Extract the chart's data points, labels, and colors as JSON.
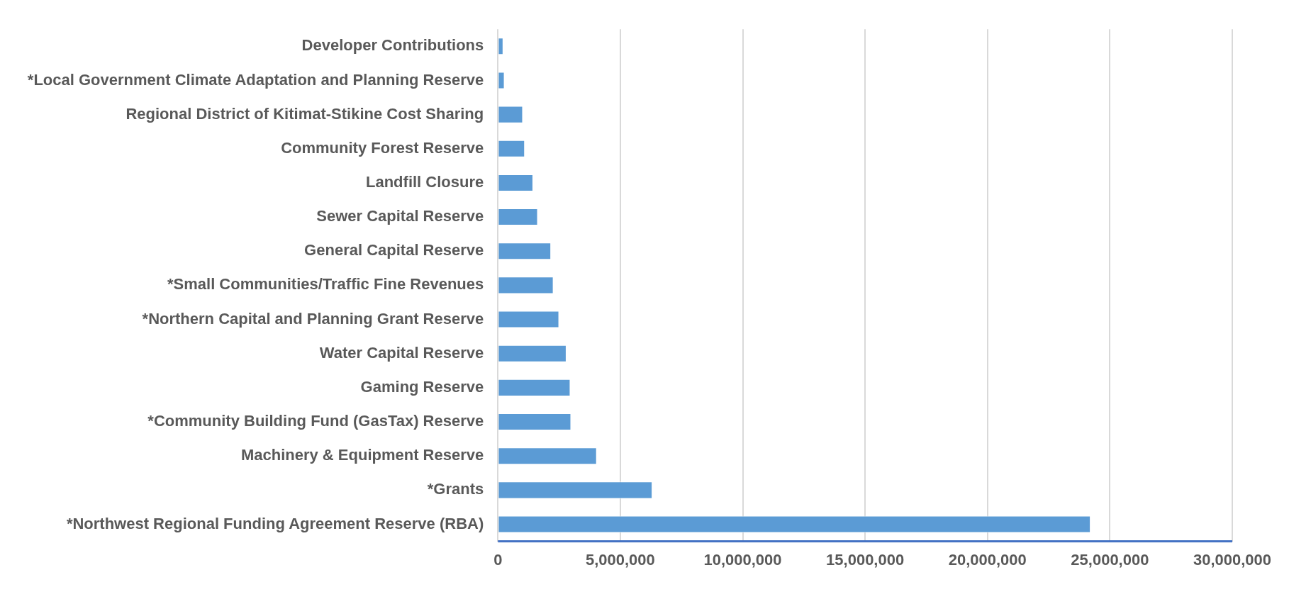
{
  "chart_data": {
    "type": "bar",
    "orientation": "horizontal",
    "categories": [
      "Developer Contributions",
      "*Local Government Climate Adaptation and Planning Reserve",
      "Regional District of Kitimat-Stikine Cost Sharing",
      "Community Forest Reserve",
      "Landfill Closure",
      "Sewer Capital Reserve",
      "General Capital Reserve",
      "*Small Communities/Traffic Fine Revenues",
      "*Northern Capital and Planning Grant Reserve",
      "Water Capital Reserve",
      "Gaming Reserve",
      "*Community Building Fund (GasTax) Reserve",
      "Machinery & Equipment Reserve",
      "*Grants",
      "*Northwest Regional Funding Agreement Reserve (RBA)"
    ],
    "values": [
      220000,
      270000,
      1020000,
      1100000,
      1440000,
      1630000,
      2170000,
      2270000,
      2500000,
      2800000,
      2960000,
      2990000,
      4040000,
      6310000,
      24210000
    ],
    "color": "#5b9bd5",
    "xlim": [
      0,
      30000000
    ],
    "xticks": [
      0,
      {
        "value": 5000000,
        "label": "5,000,000"
      },
      {
        "value": 10000000,
        "label": "10,000,000"
      },
      {
        "value": 15000000,
        "label": "15,000,000"
      },
      {
        "value": 20000000,
        "label": "20,000,000"
      },
      {
        "value": 25000000,
        "label": "25,000,000"
      },
      {
        "value": 30000000,
        "label": "30,000,000"
      }
    ],
    "grid": "x",
    "legend": false
  }
}
